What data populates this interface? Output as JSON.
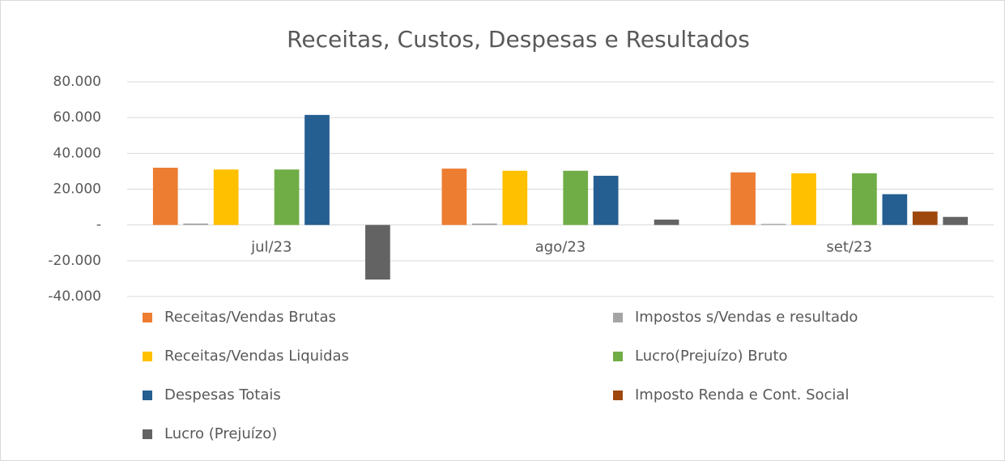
{
  "chart_data": {
    "type": "bar",
    "title": "Receitas, Custos, Despesas e Resultados",
    "categories": [
      "jul/23",
      "ago/23",
      "set/23"
    ],
    "series": [
      {
        "name": "Receitas/Vendas Brutas",
        "color": "#ED7D31",
        "values": [
          32000,
          31500,
          29400
        ]
      },
      {
        "name": "Impostos s/Vendas e resultado",
        "color": "#A5A5A5",
        "values": [
          800,
          800,
          600
        ]
      },
      {
        "name": "Receitas/Vendas Liquidas",
        "color": "#FFC000",
        "values": [
          31000,
          30300,
          28900
        ]
      },
      {
        "name": "Lucro(Prejuízo) Bruto",
        "color": "#70AD47",
        "values": [
          31000,
          30300,
          28900
        ]
      },
      {
        "name": "Despesas Totais",
        "color": "#255E91",
        "values": [
          61500,
          27500,
          17200
        ]
      },
      {
        "name": "Imposto Renda e Cont. Social",
        "color": "#9E480E",
        "values": [
          0,
          0,
          7500
        ]
      },
      {
        "name": "Lucro (Prejuízo)",
        "color": "#636363",
        "values": [
          -30500,
          3000,
          4500
        ]
      }
    ],
    "ylim": [
      -40000,
      80000
    ],
    "yticks": [
      {
        "value": -40000,
        "label": "-40.000"
      },
      {
        "value": -20000,
        "label": "-20.000"
      },
      {
        "value": 0,
        "label": "-"
      },
      {
        "value": 20000,
        "label": "20.000"
      },
      {
        "value": 40000,
        "label": "40.000"
      },
      {
        "value": 60000,
        "label": "60.000"
      },
      {
        "value": 80000,
        "label": "80.000"
      }
    ],
    "grid": true
  }
}
